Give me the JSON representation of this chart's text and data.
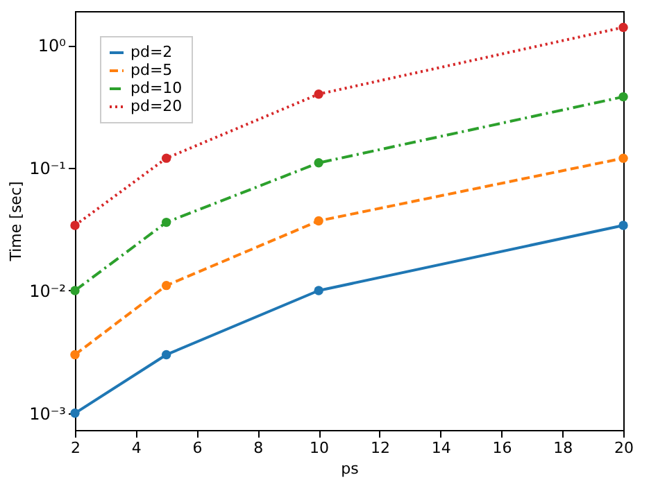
{
  "chart_data": {
    "type": "line",
    "xlabel": "ps",
    "ylabel": "Time [sec]",
    "x": [
      2,
      5,
      10,
      20
    ],
    "log": "y",
    "xlim": [
      2,
      20
    ],
    "xticks": [
      2,
      4,
      6,
      8,
      10,
      12,
      14,
      16,
      18,
      20
    ],
    "ylim": [
      0.00073,
      1.9
    ],
    "yticks": [
      {
        "value": 0.001,
        "label": "10⁻³"
      },
      {
        "value": 0.01,
        "label": "10⁻²"
      },
      {
        "value": 0.1,
        "label": "10⁻¹"
      },
      {
        "value": 1,
        "label": "10⁰"
      }
    ],
    "legend": "top left",
    "marker": "circle",
    "grid": false,
    "series": [
      {
        "name": "pd=2",
        "color": "#1f77b4",
        "line_style": "solid",
        "values": [
          0.001,
          0.003,
          0.01,
          0.034
        ]
      },
      {
        "name": "pd=5",
        "color": "#ff7f0e",
        "line_style": "dashed",
        "values": [
          0.003,
          0.011,
          0.037,
          0.12
        ]
      },
      {
        "name": "pd=10",
        "color": "#2ca02c",
        "line_style": "dashdot",
        "values": [
          0.01,
          0.036,
          0.11,
          0.38
        ]
      },
      {
        "name": "pd=20",
        "color": "#d62728",
        "line_style": "dotted",
        "values": [
          0.034,
          0.12,
          0.4,
          1.4
        ]
      }
    ]
  }
}
